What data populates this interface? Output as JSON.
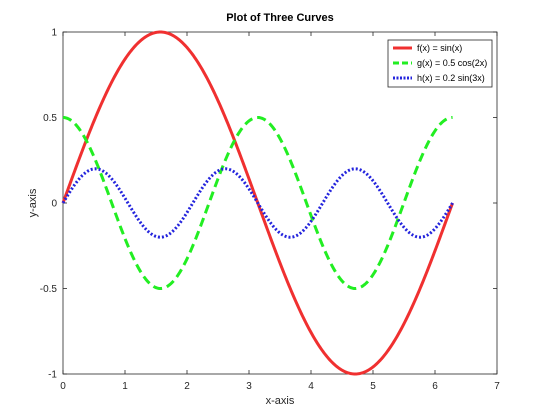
{
  "chart_data": {
    "type": "line",
    "title": "Plot of Three Curves",
    "xlabel": "x-axis",
    "ylabel": "y-axis",
    "xlim": [
      0,
      7
    ],
    "ylim": [
      -1,
      1
    ],
    "xticks": [
      0,
      1,
      2,
      3,
      4,
      5,
      6,
      7
    ],
    "yticks": [
      -1,
      -0.5,
      0,
      0.5,
      1
    ],
    "xtick_labels": [
      "0",
      "1",
      "2",
      "3",
      "4",
      "5",
      "6",
      "7"
    ],
    "ytick_labels": [
      "-1",
      "-0.5",
      "0",
      "0.5",
      "1"
    ],
    "grid": false,
    "legend_position": "top-right",
    "x_range": [
      0,
      6.2832
    ],
    "series": [
      {
        "name": "f(x) = sin(x)",
        "function": "sin(x)",
        "color": "#f03030",
        "style": "solid"
      },
      {
        "name": "g(x) = 0.5 cos(2x)",
        "function": "0.5*cos(2*x)",
        "color": "#22ee22",
        "style": "dashed"
      },
      {
        "name": "h(x) = 0.2 sin(3x)",
        "function": "0.2*sin(3*x)",
        "color": "#2424dd",
        "style": "dotted"
      }
    ]
  }
}
